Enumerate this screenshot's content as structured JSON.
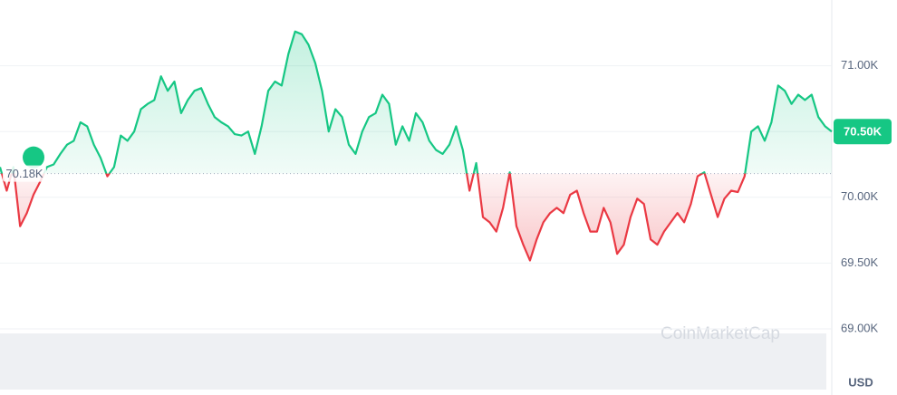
{
  "chart_data": {
    "type": "line",
    "currency": "USD",
    "watermark": "CoinMarketCap",
    "up_color": "#16c784",
    "down_color": "#ea3943",
    "baseline": {
      "value": 70180,
      "label": "70.18K"
    },
    "last_price": {
      "value": 70500,
      "label": "70.50K"
    },
    "ylim": [
      69000,
      71500
    ],
    "yticks": [
      {
        "value": 69000,
        "label": "69.00K"
      },
      {
        "value": 69500,
        "label": "69.50K"
      },
      {
        "value": 70000,
        "label": "70.00K"
      },
      {
        "value": 70500,
        "label": "70.50K"
      },
      {
        "value": 71000,
        "label": "71.00K"
      }
    ],
    "grid": true,
    "values": [
      70230,
      70050,
      70230,
      69780,
      69880,
      70020,
      70120,
      70230,
      70250,
      70330,
      70400,
      70430,
      70570,
      70540,
      70400,
      70300,
      70160,
      70230,
      70470,
      70430,
      70500,
      70670,
      70710,
      70740,
      70920,
      70810,
      70880,
      70640,
      70740,
      70810,
      70830,
      70710,
      70610,
      70570,
      70540,
      70480,
      70470,
      70500,
      70330,
      70540,
      70810,
      70880,
      70850,
      71090,
      71260,
      71240,
      71160,
      71020,
      70810,
      70500,
      70670,
      70610,
      70400,
      70330,
      70500,
      70610,
      70640,
      70780,
      70710,
      70400,
      70540,
      70430,
      70640,
      70570,
      70430,
      70360,
      70330,
      70400,
      70540,
      70360,
      70050,
      70260,
      69850,
      69810,
      69740,
      69920,
      70190,
      69780,
      69640,
      69520,
      69680,
      69810,
      69880,
      69920,
      69880,
      70020,
      70050,
      69880,
      69740,
      69740,
      69920,
      69810,
      69570,
      69640,
      69850,
      69990,
      69950,
      69680,
      69640,
      69740,
      69810,
      69880,
      69810,
      69950,
      70160,
      70190,
      70020,
      69850,
      69990,
      70050,
      70040,
      70160,
      70500,
      70540,
      70430,
      70570,
      70850,
      70810,
      70710,
      70780,
      70740,
      70780,
      70610,
      70540,
      70500
    ]
  }
}
